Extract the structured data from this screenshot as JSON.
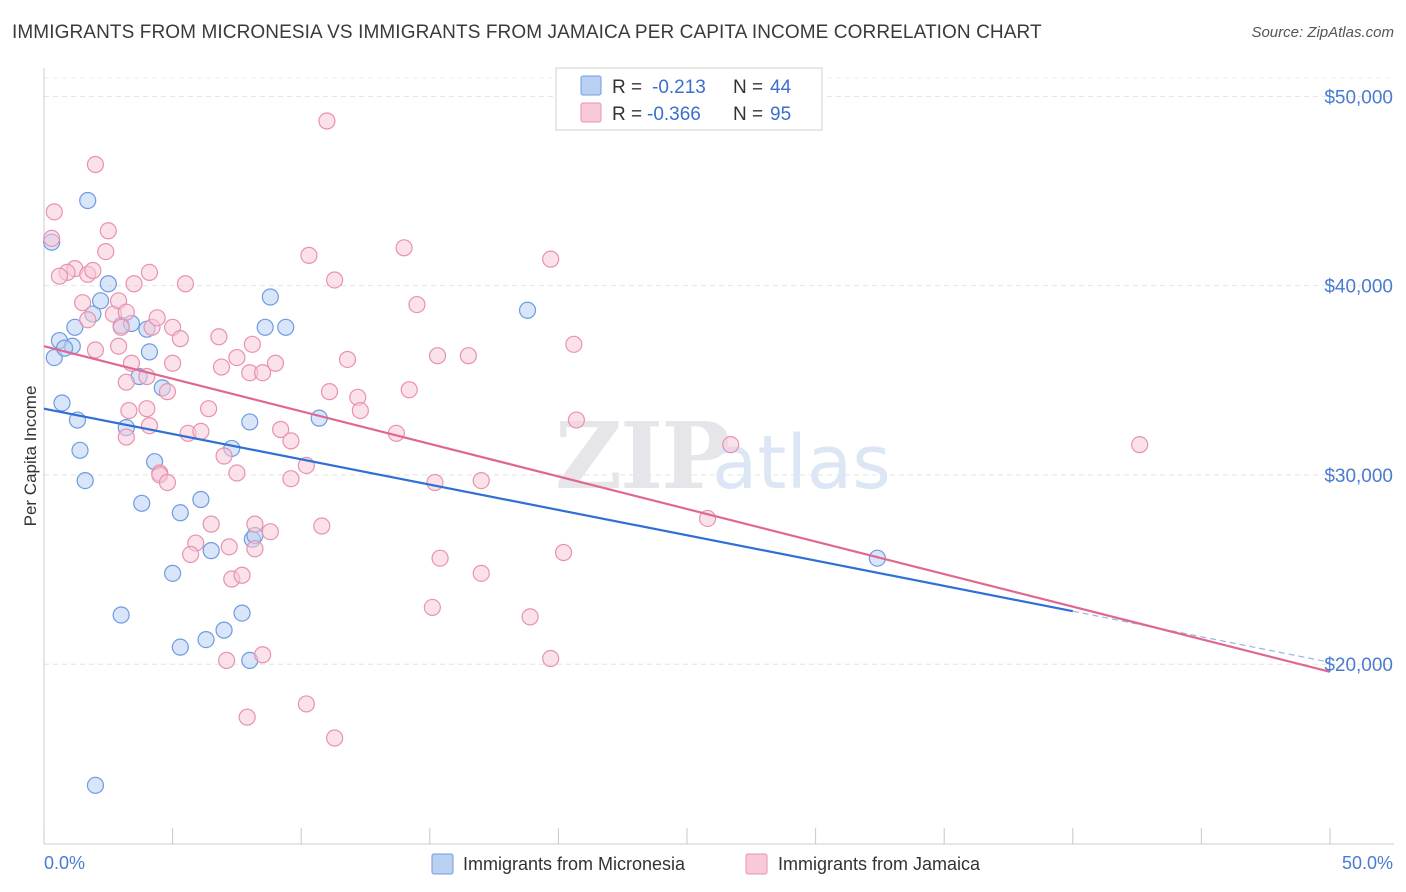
{
  "title": "IMMIGRANTS FROM MICRONESIA VS IMMIGRANTS FROM JAMAICA PER CAPITA INCOME CORRELATION CHART",
  "source": "Source: ZipAtlas.com",
  "watermark": {
    "zip": "ZIP",
    "atlas": "atlas"
  },
  "legend": {
    "r_label": "R =",
    "n_label": "N =",
    "entries": [
      {
        "r": "-0.213",
        "n": "44",
        "color": "#4a7bd0"
      },
      {
        "r": "-0.366",
        "n": "95",
        "color": "#e87fa3"
      }
    ]
  },
  "chart_data": {
    "type": "scatter",
    "ylabel": "Per Capita Income",
    "xlim": [
      0,
      50
    ],
    "ylim": [
      10500,
      51500
    ],
    "x_tick_labels": [
      {
        "x": 0,
        "label": "0.0%"
      },
      {
        "x": 50,
        "label": "50.0%"
      }
    ],
    "y_ticks": [
      20000,
      30000,
      40000,
      50000
    ],
    "y_tick_labels": [
      "$20,000",
      "$30,000",
      "$40,000",
      "$50,000"
    ],
    "grid": true,
    "series": [
      {
        "name": "Immigrants from Micronesia",
        "color": "#6f9be0",
        "fill": "#b9d0f3",
        "trend": {
          "x0": 0,
          "y0": 33500,
          "x1": 40,
          "y1": 22800,
          "dash_to_x": 50,
          "dash_to_y": 20100
        },
        "points": [
          [
            0.3,
            42300
          ],
          [
            1.7,
            44500
          ],
          [
            0.6,
            37100
          ],
          [
            0.4,
            36200
          ],
          [
            1.1,
            36800
          ],
          [
            0.8,
            36700
          ],
          [
            1.2,
            37800
          ],
          [
            2.5,
            40100
          ],
          [
            1.9,
            38500
          ],
          [
            3.0,
            37900
          ],
          [
            2.2,
            39200
          ],
          [
            4.0,
            37700
          ],
          [
            3.4,
            38000
          ],
          [
            0.7,
            33800
          ],
          [
            1.3,
            32900
          ],
          [
            3.2,
            32500
          ],
          [
            1.4,
            31300
          ],
          [
            3.7,
            35200
          ],
          [
            4.1,
            36500
          ],
          [
            4.6,
            34600
          ],
          [
            1.6,
            29700
          ],
          [
            4.3,
            30700
          ],
          [
            3.8,
            28500
          ],
          [
            5.3,
            28000
          ],
          [
            6.1,
            28700
          ],
          [
            8.0,
            32800
          ],
          [
            7.3,
            31400
          ],
          [
            8.6,
            37800
          ],
          [
            8.8,
            39400
          ],
          [
            9.4,
            37800
          ],
          [
            10.7,
            33000
          ],
          [
            7.7,
            22700
          ],
          [
            6.5,
            26000
          ],
          [
            5.0,
            24800
          ],
          [
            3.0,
            22600
          ],
          [
            5.3,
            20900
          ],
          [
            6.3,
            21300
          ],
          [
            7.0,
            21800
          ],
          [
            8.0,
            20200
          ],
          [
            2.0,
            13600
          ],
          [
            8.1,
            26600
          ],
          [
            18.8,
            38700
          ],
          [
            32.4,
            25600
          ],
          [
            8.2,
            26800
          ]
        ]
      },
      {
        "name": "Immigrants from Jamaica",
        "color": "#e892b0",
        "fill": "#f8c9d8",
        "trend": {
          "x0": 0,
          "y0": 36800,
          "x1": 50,
          "y1": 19600
        },
        "points": [
          [
            0.3,
            42500
          ],
          [
            0.4,
            43900
          ],
          [
            2.0,
            46400
          ],
          [
            11.0,
            48700
          ],
          [
            1.2,
            40900
          ],
          [
            0.9,
            40700
          ],
          [
            0.6,
            40500
          ],
          [
            1.7,
            40600
          ],
          [
            1.5,
            39100
          ],
          [
            2.5,
            42900
          ],
          [
            2.4,
            41800
          ],
          [
            3.5,
            40100
          ],
          [
            1.7,
            38200
          ],
          [
            2.7,
            38500
          ],
          [
            2.9,
            39200
          ],
          [
            3.2,
            38600
          ],
          [
            3.0,
            37800
          ],
          [
            4.2,
            37800
          ],
          [
            4.1,
            40700
          ],
          [
            5.0,
            37800
          ],
          [
            4.4,
            38300
          ],
          [
            5.5,
            40100
          ],
          [
            6.8,
            37300
          ],
          [
            5.3,
            37200
          ],
          [
            7.5,
            36200
          ],
          [
            6.9,
            35700
          ],
          [
            8.1,
            36900
          ],
          [
            2.9,
            36800
          ],
          [
            2.0,
            36600
          ],
          [
            3.4,
            35900
          ],
          [
            4.0,
            35200
          ],
          [
            3.2,
            34900
          ],
          [
            5.0,
            35900
          ],
          [
            8.0,
            35400
          ],
          [
            9.0,
            35900
          ],
          [
            8.5,
            35400
          ],
          [
            4.8,
            34400
          ],
          [
            4.0,
            33500
          ],
          [
            3.3,
            33400
          ],
          [
            4.1,
            32600
          ],
          [
            5.6,
            32200
          ],
          [
            6.1,
            32300
          ],
          [
            3.2,
            32000
          ],
          [
            6.4,
            33500
          ],
          [
            9.2,
            32400
          ],
          [
            9.6,
            31800
          ],
          [
            11.1,
            34400
          ],
          [
            12.2,
            34100
          ],
          [
            12.3,
            33400
          ],
          [
            11.8,
            36100
          ],
          [
            14.2,
            34500
          ],
          [
            13.7,
            32200
          ],
          [
            15.3,
            36300
          ],
          [
            16.5,
            36300
          ],
          [
            20.7,
            32900
          ],
          [
            20.6,
            36900
          ],
          [
            26.7,
            31600
          ],
          [
            42.6,
            31600
          ],
          [
            10.3,
            41600
          ],
          [
            11.3,
            40300
          ],
          [
            14.5,
            39000
          ],
          [
            14.0,
            42000
          ],
          [
            19.7,
            41400
          ],
          [
            7.0,
            31000
          ],
          [
            4.5,
            30100
          ],
          [
            4.5,
            30000
          ],
          [
            4.8,
            29600
          ],
          [
            7.5,
            30100
          ],
          [
            9.6,
            29800
          ],
          [
            10.2,
            30500
          ],
          [
            15.2,
            29600
          ],
          [
            17.0,
            29700
          ],
          [
            10.8,
            27300
          ],
          [
            6.5,
            27400
          ],
          [
            8.2,
            27400
          ],
          [
            8.8,
            27000
          ],
          [
            7.2,
            26200
          ],
          [
            5.9,
            26400
          ],
          [
            5.7,
            25800
          ],
          [
            8.2,
            26100
          ],
          [
            15.4,
            25600
          ],
          [
            17.0,
            24800
          ],
          [
            20.2,
            25900
          ],
          [
            7.3,
            24500
          ],
          [
            7.7,
            24700
          ],
          [
            25.8,
            27700
          ],
          [
            15.1,
            23000
          ],
          [
            18.9,
            22500
          ],
          [
            19.7,
            20300
          ],
          [
            8.5,
            20500
          ],
          [
            7.1,
            20200
          ],
          [
            10.2,
            17900
          ],
          [
            7.9,
            17200
          ],
          [
            11.3,
            16100
          ],
          [
            1.9,
            40800
          ]
        ]
      }
    ]
  },
  "bottom_legend": [
    {
      "label": "Immigrants from Micronesia",
      "color": "#b9d0f3",
      "border": "#6f9be0"
    },
    {
      "label": "Immigrants from Jamaica",
      "color": "#f8c9d8",
      "border": "#e892b0"
    }
  ]
}
